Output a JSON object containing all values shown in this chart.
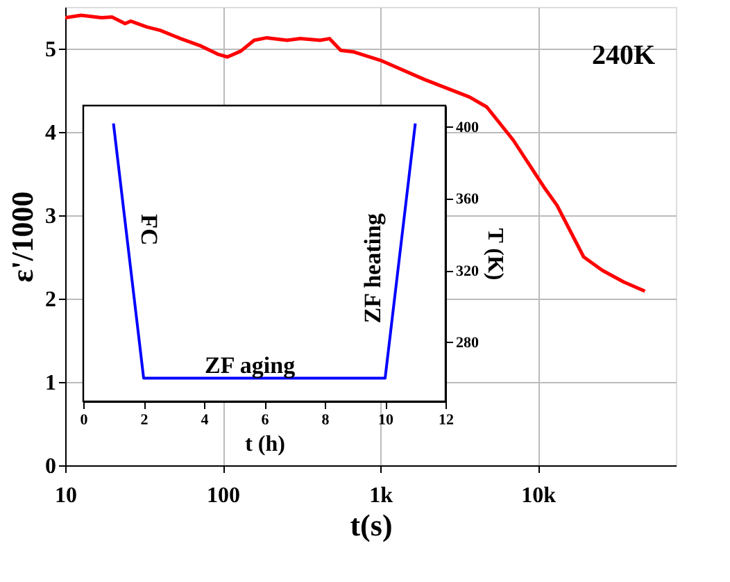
{
  "chart_data": [
    {
      "type": "line",
      "xlabel": "t(s)",
      "ylabel": "ε'/1000",
      "log": "x",
      "grid": true,
      "xlim": [
        10,
        75000
      ],
      "ylim": [
        0,
        5.5
      ],
      "xticks": [
        10,
        100,
        {
          "value": 1000,
          "label": "1k"
        },
        {
          "value": 10000,
          "label": "10k"
        }
      ],
      "yticks": [
        0,
        1,
        2,
        3,
        4,
        5
      ],
      "annotations": [
        "240K"
      ],
      "series": [
        {
          "color": "#ff0000",
          "x": [
            10,
            12.6,
            17,
            19.8,
            24,
            26,
            33,
            40,
            54,
            73,
            94,
            107,
            130,
            158,
            190,
            256,
            310,
            414,
            475,
            560,
            680,
            1000,
            1900,
            3670,
            4730,
            6980,
            10900,
            13200,
            19500,
            25600,
            35000,
            47700
          ],
          "values": [
            5.37,
            5.4,
            5.37,
            5.38,
            5.3,
            5.33,
            5.26,
            5.22,
            5.12,
            5.03,
            4.93,
            4.9,
            4.97,
            5.1,
            5.13,
            5.1,
            5.12,
            5.1,
            5.12,
            4.98,
            4.96,
            4.86,
            4.63,
            4.42,
            4.3,
            3.9,
            3.34,
            3.12,
            2.5,
            2.34,
            2.2,
            2.09
          ]
        }
      ]
    },
    {
      "type": "line",
      "xlabel": "t (h)",
      "ylabel": "T (K)",
      "xlim": [
        0,
        12
      ],
      "ylim": [
        247,
        412
      ],
      "xticks": [
        0,
        2,
        4,
        6,
        8,
        10,
        12
      ],
      "yticks": [
        280,
        320,
        360,
        400
      ],
      "annotations": [
        "FC",
        "ZF aging",
        "ZF heating"
      ],
      "series": [
        {
          "color": "#0000ff",
          "x": [
            1,
            2,
            10,
            11
          ],
          "values": [
            402,
            260,
            260,
            402
          ]
        }
      ]
    }
  ]
}
